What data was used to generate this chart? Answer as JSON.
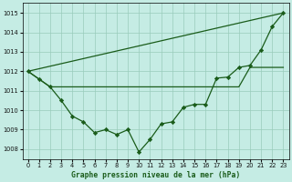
{
  "title": "Graphe pression niveau de la mer (hPa)",
  "bg_color": "#c5ece4",
  "grid_color": "#99ccbb",
  "line_color": "#1a5c1a",
  "xlim": [
    -0.5,
    23.5
  ],
  "ylim": [
    1007.5,
    1015.5
  ],
  "yticks": [
    1008,
    1009,
    1010,
    1011,
    1012,
    1013,
    1014,
    1015
  ],
  "xticks": [
    0,
    1,
    2,
    3,
    4,
    5,
    6,
    7,
    8,
    9,
    10,
    11,
    12,
    13,
    14,
    15,
    16,
    17,
    18,
    19,
    20,
    21,
    22,
    23
  ],
  "line1_x": [
    0,
    1,
    2,
    3,
    4,
    5,
    6,
    7,
    8,
    9,
    10,
    11,
    12,
    13,
    14,
    15,
    16,
    17,
    18,
    19,
    20,
    21,
    22,
    23
  ],
  "line1_y": [
    1012.0,
    1011.6,
    1011.2,
    1010.5,
    1009.7,
    1009.4,
    1008.85,
    1009.0,
    1008.75,
    1009.0,
    1007.85,
    1008.5,
    1009.3,
    1009.4,
    1010.15,
    1010.3,
    1010.3,
    1011.65,
    1011.7,
    1012.2,
    1012.3,
    1013.1,
    1014.3,
    1015.0
  ],
  "line2_x": [
    0,
    23
  ],
  "line2_y": [
    1012.0,
    1015.0
  ],
  "line3_x": [
    0,
    1,
    2,
    3,
    4,
    5,
    6,
    7,
    8,
    9,
    10,
    11,
    12,
    13,
    14,
    15,
    16,
    17,
    18,
    19,
    20,
    21,
    22,
    23
  ],
  "line3_y": [
    1012.0,
    1011.6,
    1011.2,
    1011.2,
    1011.2,
    1011.2,
    1011.2,
    1011.2,
    1011.2,
    1011.2,
    1011.2,
    1011.2,
    1011.2,
    1011.2,
    1011.2,
    1011.2,
    1011.2,
    1011.2,
    1011.2,
    1011.2,
    1012.2,
    1012.2,
    1012.2,
    1012.2
  ]
}
